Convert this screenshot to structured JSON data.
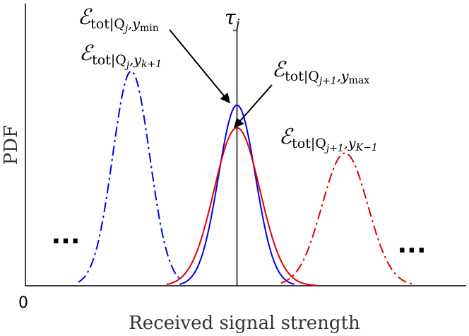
{
  "chart_data": {
    "type": "line",
    "xlabel": "Received signal strength",
    "ylabel": "PDF",
    "x_origin_tick": "0",
    "xlim": [
      0,
      10
    ],
    "ylim": [
      0,
      1.0
    ],
    "threshold": {
      "x": 4.8,
      "label": "τj"
    },
    "ellipsis_left": "...",
    "ellipsis_right": "...",
    "colors": {
      "blue": "#0000e6",
      "red": "#e00000",
      "axis": "#000000"
    },
    "series": [
      {
        "color": "blue",
        "style": "dashdot",
        "mean": 2.4,
        "sd": 0.42,
        "peak": 0.76,
        "xrange": [
          1.2,
          3.5
        ]
      },
      {
        "color": "blue",
        "style": "solid",
        "mean": 4.8,
        "sd": 0.42,
        "peak": 0.64,
        "xrange": [
          3.5,
          6.1
        ]
      },
      {
        "color": "red",
        "style": "solid",
        "mean": 4.8,
        "sd": 0.52,
        "peak": 0.56,
        "xrange": [
          3.2,
          6.6
        ]
      },
      {
        "color": "red",
        "style": "dashdot",
        "mean": 7.25,
        "sd": 0.52,
        "peak": 0.47,
        "xrange": [
          5.8,
          8.8
        ]
      }
    ],
    "annotations": [
      {
        "main": "ℰ",
        "sub_text": "tot|Q",
        "sub_sub": "j",
        "sub_rest": ",y",
        "sub_sub2": "min"
      },
      {
        "main": "ℰ",
        "sub_text": "tot|Q",
        "sub_sub": "j",
        "sub_rest": ",y",
        "sub_sub2": "k+1"
      },
      {
        "main": "ℰ",
        "sub_text": "tot|Q",
        "sub_sub": "j+1",
        "sub_rest": ",y",
        "sub_sub2": "max"
      },
      {
        "main": "ℰ",
        "sub_text": "tot|Q",
        "sub_sub": "j+1",
        "sub_rest": ",y",
        "sub_sub2": "K−1"
      }
    ]
  }
}
